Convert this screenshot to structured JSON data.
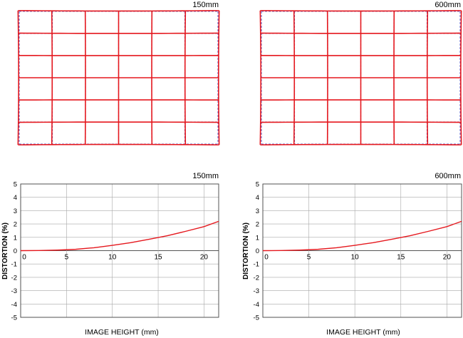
{
  "chart_data": [
    {
      "type": "grid",
      "focal_label": "150mm",
      "columns": 6,
      "rows": 6,
      "series": [
        {
          "name": "",
          "style": "ideal-dashed",
          "color": "#6a6acd"
        },
        {
          "name": "",
          "style": "distorted-solid",
          "color": "#e5181e"
        }
      ]
    },
    {
      "type": "grid",
      "focal_label": "600mm",
      "columns": 6,
      "rows": 6,
      "series": [
        {
          "name": "",
          "style": "ideal-dashed",
          "color": "#6a6acd"
        },
        {
          "name": "",
          "style": "distorted-solid",
          "color": "#e5181e"
        }
      ]
    },
    {
      "type": "line",
      "focal_label": "150mm",
      "xlabel": "IMAGE HEIGHT (mm)",
      "ylabel": "DISTORTION (%)",
      "xlim": [
        0,
        21.6
      ],
      "ylim": [
        -5,
        5
      ],
      "x_ticks": [
        0,
        5,
        10,
        15,
        20
      ],
      "y_ticks": [
        5,
        4,
        3,
        2,
        1,
        0,
        -1,
        -2,
        -3,
        -4,
        -5
      ],
      "x_tick_labels": [
        "0",
        "5",
        "10",
        "15",
        "20"
      ],
      "y_tick_labels": [
        "5",
        "4",
        "3",
        "2",
        "1",
        "0",
        "-1",
        "-2",
        "-3",
        "-4",
        "-5"
      ],
      "grid": true,
      "color": "#e5181e",
      "series": [
        {
          "name": "",
          "x": [
            0,
            2,
            4,
            6,
            8,
            10,
            12,
            14,
            16,
            18,
            20,
            21.6
          ],
          "y": [
            0,
            0.01,
            0.04,
            0.1,
            0.22,
            0.4,
            0.6,
            0.85,
            1.12,
            1.45,
            1.8,
            2.2
          ]
        }
      ]
    },
    {
      "type": "line",
      "focal_label": "600mm",
      "xlabel": "IMAGE HEIGHT (mm)",
      "ylabel": "DISTORTION (%)",
      "xlim": [
        0,
        21.6
      ],
      "ylim": [
        -5,
        5
      ],
      "x_ticks": [
        0,
        5,
        10,
        15,
        20
      ],
      "y_ticks": [
        5,
        4,
        3,
        2,
        1,
        0,
        -1,
        -2,
        -3,
        -4,
        -5
      ],
      "x_tick_labels": [
        "0",
        "5",
        "10",
        "15",
        "20"
      ],
      "y_tick_labels": [
        "5",
        "4",
        "3",
        "2",
        "1",
        "0",
        "-1",
        "-2",
        "-3",
        "-4",
        "-5"
      ],
      "grid": true,
      "color": "#e5181e",
      "series": [
        {
          "name": "",
          "x": [
            0,
            2,
            4,
            6,
            8,
            10,
            12,
            14,
            16,
            18,
            20,
            21.6
          ],
          "y": [
            0,
            0.01,
            0.04,
            0.1,
            0.22,
            0.4,
            0.6,
            0.85,
            1.12,
            1.45,
            1.8,
            2.2
          ]
        }
      ]
    }
  ]
}
